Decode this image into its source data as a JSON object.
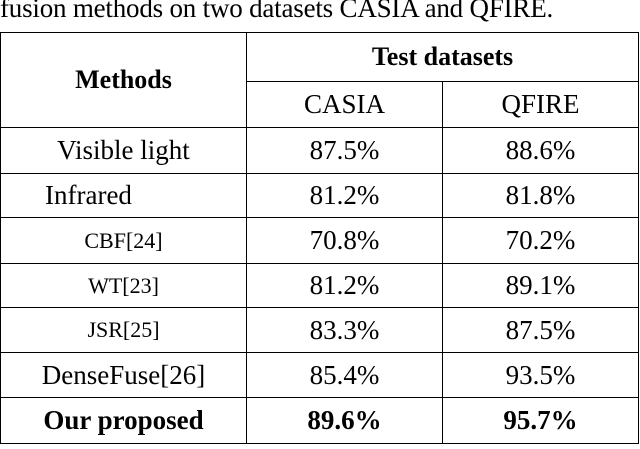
{
  "caption": "fusion methods on two datasets CASIA and QFIRE.",
  "table": {
    "methods_header": "Methods",
    "group_header": "Test datasets",
    "datasets": [
      "CASIA",
      "QFIRE"
    ],
    "rows": [
      {
        "method": "Visible light",
        "casia": "87.5%",
        "qfire": "88.6%"
      },
      {
        "method": "Infrared",
        "casia": "81.2%",
        "qfire": "81.8%"
      },
      {
        "method": "CBF[24]",
        "casia": "70.8%",
        "qfire": "70.2%"
      },
      {
        "method": "WT[23]",
        "casia": "81.2%",
        "qfire": "89.1%"
      },
      {
        "method": "JSR[25]",
        "casia": "83.3%",
        "qfire": "87.5%"
      },
      {
        "method": "DenseFuse[26]",
        "casia": "85.4%",
        "qfire": "93.5%"
      },
      {
        "method": "Our proposed",
        "casia": "89.6%",
        "qfire": "95.7%"
      }
    ]
  }
}
